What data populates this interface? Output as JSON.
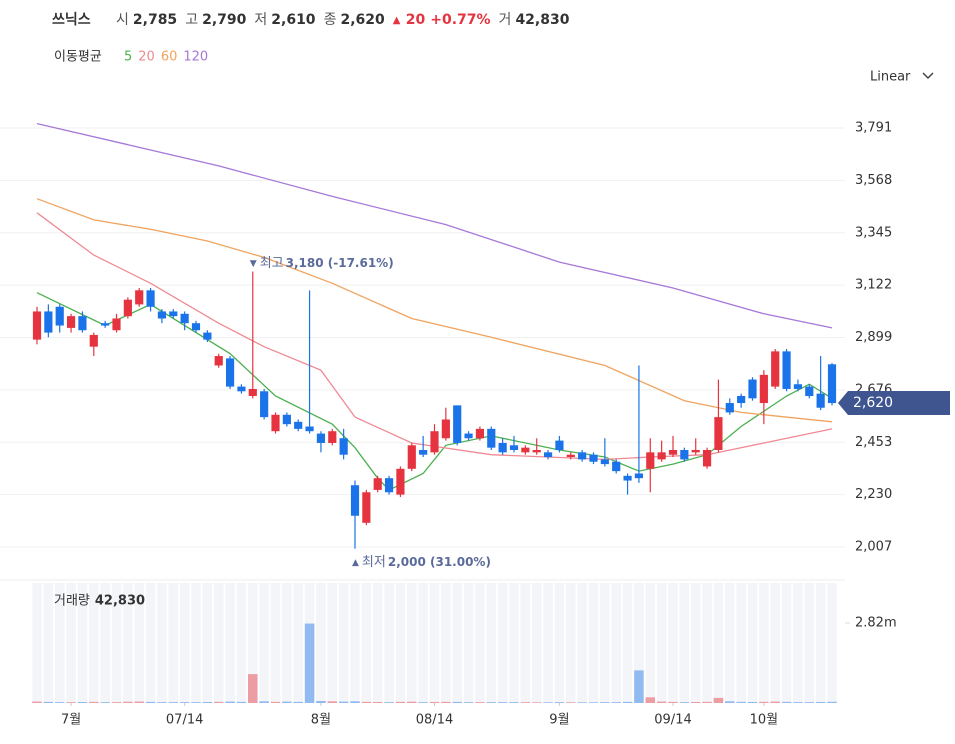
{
  "header": {
    "name": "쓰닉스",
    "items": [
      {
        "label": "시",
        "value": "2,785"
      },
      {
        "label": "고",
        "value": "2,790"
      },
      {
        "label": "저",
        "value": "2,610"
      },
      {
        "label": "종",
        "value": "2,620"
      }
    ],
    "change": {
      "marker": "▲",
      "amount": "20",
      "percent": "+0.77%"
    },
    "volume": {
      "label": "거",
      "value": "42,830"
    }
  },
  "scale_menu": "Linear",
  "chart_data": {
    "type": "candlestick",
    "up_color": "#e5343f",
    "down_color": "#1a73e8",
    "xlim": [
      0,
      70
    ],
    "xticks": [
      {
        "value": 3,
        "label": "7월"
      },
      {
        "value": 13,
        "label": "07/14"
      },
      {
        "value": 25,
        "label": "8월"
      },
      {
        "value": 35,
        "label": "08/14"
      },
      {
        "value": 46,
        "label": "9월"
      },
      {
        "value": 56,
        "label": "09/14"
      },
      {
        "value": 64,
        "label": "10월"
      }
    ],
    "ylim": [
      1909,
      3953
    ],
    "yticks": [
      {
        "value": 3791,
        "label": "3,791"
      },
      {
        "value": 3568,
        "label": "3,568"
      },
      {
        "value": 3345,
        "label": "3,345"
      },
      {
        "value": 3122,
        "label": "3,122"
      },
      {
        "value": 2899,
        "label": "2,899"
      },
      {
        "value": 2676,
        "label": "2,676"
      },
      {
        "value": 2453,
        "label": "2,453"
      },
      {
        "value": 2230,
        "label": "2,230"
      },
      {
        "value": 2007,
        "label": "2,007"
      }
    ],
    "grid": true,
    "open": [
      2890,
      3010,
      3030,
      2940,
      2990,
      2860,
      2960,
      2930,
      2990,
      3040,
      3100,
      3010,
      3010,
      3000,
      2960,
      2920,
      2780,
      2810,
      2690,
      2650,
      2670,
      2500,
      2570,
      2540,
      2520,
      2490,
      2450,
      2470,
      2270,
      2110,
      2250,
      2300,
      2230,
      2340,
      2420,
      2410,
      2470,
      2610,
      2490,
      2470,
      2510,
      2450,
      2440,
      2410,
      2410,
      2410,
      2460,
      2390,
      2410,
      2400,
      2380,
      2370,
      2310,
      2320,
      2340,
      2380,
      2400,
      2420,
      2410,
      2350,
      2420,
      2620,
      2650,
      2720,
      2620,
      2690,
      2840,
      2700,
      2690,
      2660,
      2785
    ],
    "high": [
      3030,
      3040,
      3040,
      3000,
      3010,
      2920,
      2970,
      3000,
      3070,
      3110,
      3110,
      3020,
      3020,
      3010,
      2970,
      2930,
      2830,
      2820,
      2700,
      3180,
      2680,
      2580,
      2580,
      2550,
      3100,
      2500,
      2510,
      2510,
      2290,
      2250,
      2310,
      2310,
      2350,
      2450,
      2480,
      2530,
      2600,
      2610,
      2500,
      2520,
      2520,
      2470,
      2480,
      2440,
      2470,
      2420,
      2480,
      2410,
      2420,
      2410,
      2470,
      2380,
      2320,
      2780,
      2470,
      2460,
      2480,
      2430,
      2470,
      2430,
      2720,
      2640,
      2660,
      2730,
      2760,
      2850,
      2850,
      2720,
      2700,
      2820,
      2790
    ],
    "low": [
      2870,
      2900,
      2920,
      2920,
      2920,
      2820,
      2940,
      2920,
      2980,
      3030,
      3010,
      2960,
      2980,
      2930,
      2920,
      2880,
      2770,
      2680,
      2660,
      2640,
      2550,
      2490,
      2520,
      2500,
      2490,
      2410,
      2440,
      2380,
      2000,
      2100,
      2240,
      2230,
      2220,
      2330,
      2390,
      2400,
      2460,
      2440,
      2460,
      2460,
      2420,
      2400,
      2410,
      2400,
      2400,
      2380,
      2410,
      2380,
      2370,
      2360,
      2350,
      2320,
      2230,
      2280,
      2240,
      2370,
      2390,
      2370,
      2400,
      2340,
      2410,
      2570,
      2600,
      2630,
      2530,
      2680,
      2670,
      2670,
      2640,
      2590,
      2610
    ],
    "close": [
      3010,
      2920,
      2950,
      2990,
      2930,
      2910,
      2950,
      2980,
      3060,
      3100,
      3030,
      2980,
      2990,
      2960,
      2930,
      2890,
      2820,
      2690,
      2670,
      2680,
      2560,
      2570,
      2530,
      2510,
      2500,
      2450,
      2500,
      2400,
      2140,
      2240,
      2300,
      2240,
      2340,
      2440,
      2400,
      2500,
      2550,
      2450,
      2470,
      2510,
      2430,
      2410,
      2420,
      2430,
      2420,
      2390,
      2420,
      2400,
      2380,
      2370,
      2360,
      2330,
      2290,
      2300,
      2410,
      2410,
      2420,
      2380,
      2420,
      2420,
      2560,
      2580,
      2620,
      2640,
      2740,
      2840,
      2680,
      2680,
      2650,
      2600,
      2620
    ],
    "annotations": [
      {
        "marker": "▼",
        "text": "최고",
        "value": 3180,
        "label": "3,180 (-17.61%)"
      },
      {
        "marker": "▲",
        "text": "최저",
        "value": 2000,
        "label": "2,000 (31.00%)"
      }
    ],
    "current": {
      "value": 2620,
      "label": "2,620"
    },
    "moving_averages": {
      "label": "이동평균",
      "series": [
        {
          "name": "5",
          "color": "#4caf50",
          "x": [
            0,
            6,
            10,
            17,
            21,
            26,
            28,
            30,
            31,
            34,
            36,
            40,
            46,
            50,
            53,
            56,
            59,
            62,
            66,
            68,
            70
          ],
          "values": [
            3090,
            2950,
            3040,
            2830,
            2650,
            2530,
            2430,
            2300,
            2250,
            2320,
            2440,
            2480,
            2420,
            2390,
            2330,
            2360,
            2400,
            2520,
            2650,
            2700,
            2640
          ]
        },
        {
          "name": "20",
          "color": "#ef8a94",
          "x": [
            0,
            5,
            10,
            16,
            20,
            25,
            28,
            33,
            40,
            50,
            54,
            59,
            64,
            70
          ],
          "values": [
            3430,
            3250,
            3130,
            2960,
            2860,
            2760,
            2560,
            2450,
            2400,
            2380,
            2390,
            2400,
            2450,
            2510
          ]
        },
        {
          "name": "60",
          "color": "#f0a35e",
          "x": [
            0,
            5,
            10,
            15,
            20,
            26,
            33,
            40,
            50,
            57,
            62,
            70
          ],
          "values": [
            3490,
            3400,
            3360,
            3310,
            3240,
            3130,
            2980,
            2900,
            2780,
            2630,
            2580,
            2540
          ]
        },
        {
          "name": "120",
          "color": "#a678d8",
          "x": [
            0,
            8,
            16,
            26,
            36,
            46,
            56,
            64,
            70
          ],
          "values": [
            3810,
            3720,
            3630,
            3500,
            3380,
            3220,
            3110,
            3000,
            2940
          ]
        }
      ]
    },
    "volume": {
      "label": "거래량",
      "value_label": "42,830",
      "ylim": [
        0,
        4230000
      ],
      "yticks": [
        {
          "value": 2820000,
          "label": "2.82m"
        }
      ],
      "values": [
        50000,
        40000,
        30000,
        30000,
        35000,
        40000,
        30000,
        30000,
        45000,
        50000,
        40000,
        30000,
        30000,
        30000,
        30000,
        35000,
        40000,
        50000,
        40000,
        1020000,
        60000,
        40000,
        50000,
        40000,
        2800000,
        70000,
        60000,
        50000,
        60000,
        40000,
        35000,
        30000,
        40000,
        45000,
        30000,
        35000,
        40000,
        40000,
        30000,
        30000,
        30000,
        30000,
        30000,
        30000,
        25000,
        25000,
        30000,
        25000,
        25000,
        25000,
        30000,
        30000,
        40000,
        1150000,
        200000,
        50000,
        40000,
        30000,
        35000,
        40000,
        180000,
        60000,
        40000,
        35000,
        40000,
        50000,
        40000,
        30000,
        30000,
        35000,
        42830
      ]
    }
  }
}
